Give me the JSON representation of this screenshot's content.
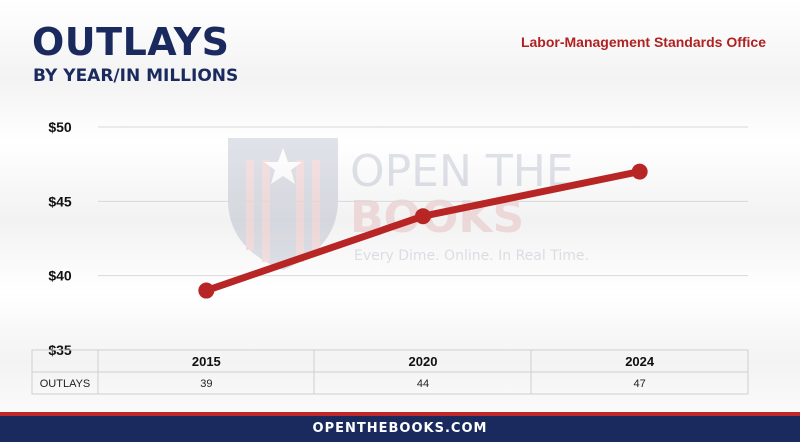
{
  "header": {
    "title": "OUTLAYS",
    "subtitle": "BY YEAR/IN MILLIONS",
    "agency": "Labor-Management Standards Office"
  },
  "watermark": {
    "line1": "OPEN THE",
    "line2": "BOOKS",
    "tagline": "Every Dime. Online. In Real Time."
  },
  "colors": {
    "navy": "#1b2a5e",
    "red": "#b02121",
    "line": "#b82525"
  },
  "chart_data": {
    "type": "line",
    "title": "OUTLAYS",
    "subtitle": "BY YEAR/IN MILLIONS",
    "categories": [
      "2015",
      "2020",
      "2024"
    ],
    "series": [
      {
        "name": "OUTLAYS",
        "values": [
          39,
          44,
          47
        ]
      }
    ],
    "ylim": [
      35,
      50
    ],
    "yticks": [
      35,
      40,
      45,
      50
    ],
    "ytick_labels": [
      "$35",
      "$40",
      "$45",
      "$50"
    ],
    "grid": true,
    "table": {
      "row_label": "OUTLAYS",
      "values": [
        "39",
        "44",
        "47"
      ]
    }
  },
  "footer": {
    "text": "OPENTHEBOOKS.COM"
  }
}
